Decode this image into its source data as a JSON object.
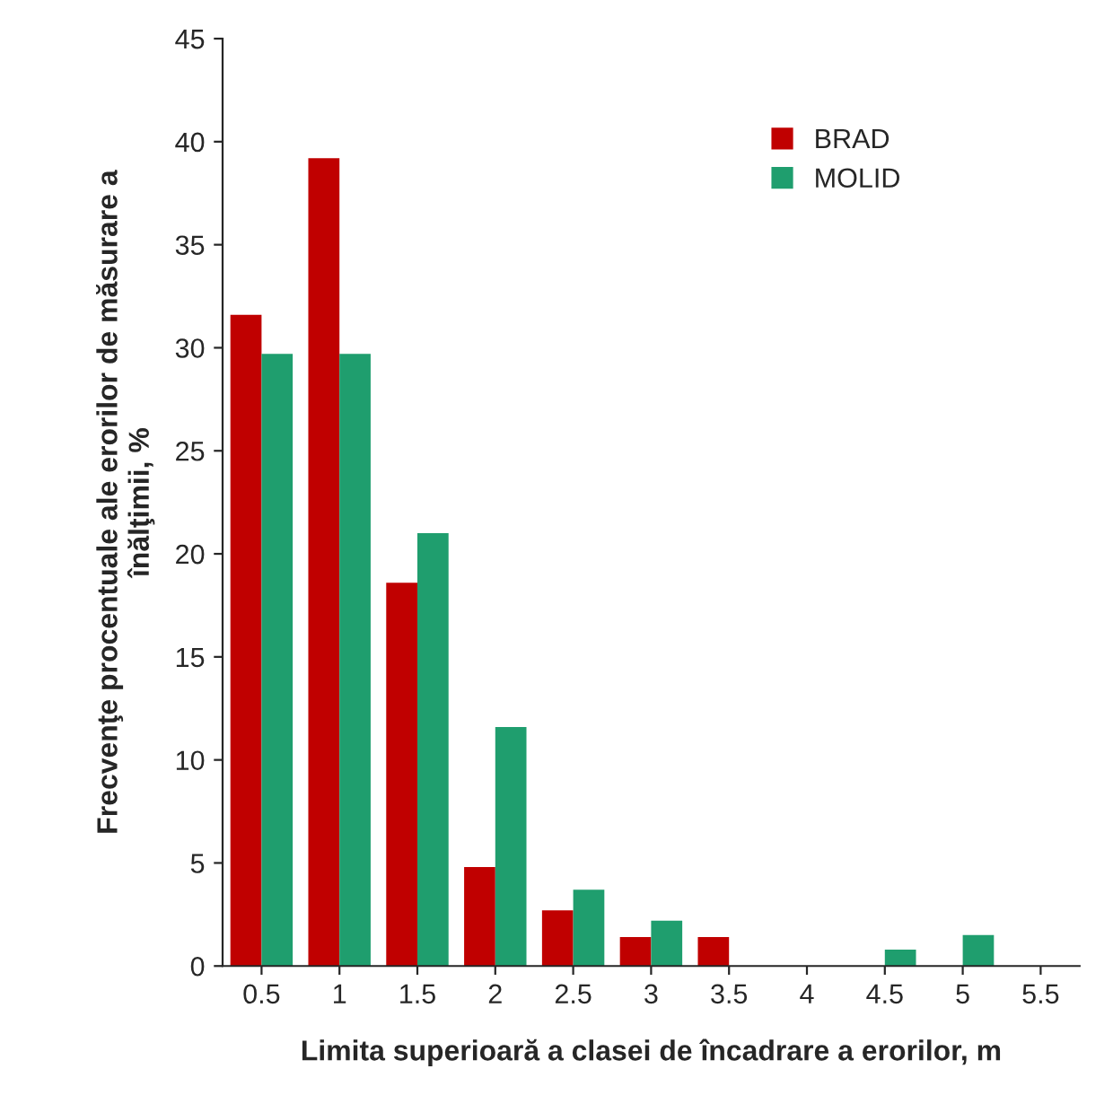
{
  "chart_data": {
    "type": "bar",
    "xlabel": "Limita superioară a clasei de încadrare a erorilor, m",
    "ylabel": "Frecvenţe procentuale ale erorilor de măsurare a\nînălţimii, %",
    "categories": [
      "0.5",
      "1",
      "1.5",
      "2",
      "2.5",
      "3",
      "3.5",
      "4",
      "4.5",
      "5",
      "5.5"
    ],
    "series": [
      {
        "name": "BRAD",
        "color": "#c00000",
        "values": [
          31.6,
          39.2,
          18.6,
          4.8,
          2.7,
          1.4,
          1.4,
          0,
          0,
          0,
          0
        ]
      },
      {
        "name": "MOLID",
        "color": "#1f9e6e",
        "values": [
          29.7,
          29.7,
          21.0,
          11.6,
          3.7,
          2.2,
          0,
          0,
          0.8,
          1.5,
          0
        ]
      }
    ],
    "ylim": [
      0,
      45
    ],
    "yticks": [
      0,
      5,
      10,
      15,
      20,
      25,
      30,
      35,
      40,
      45
    ],
    "grid": false,
    "legend": "top right"
  }
}
